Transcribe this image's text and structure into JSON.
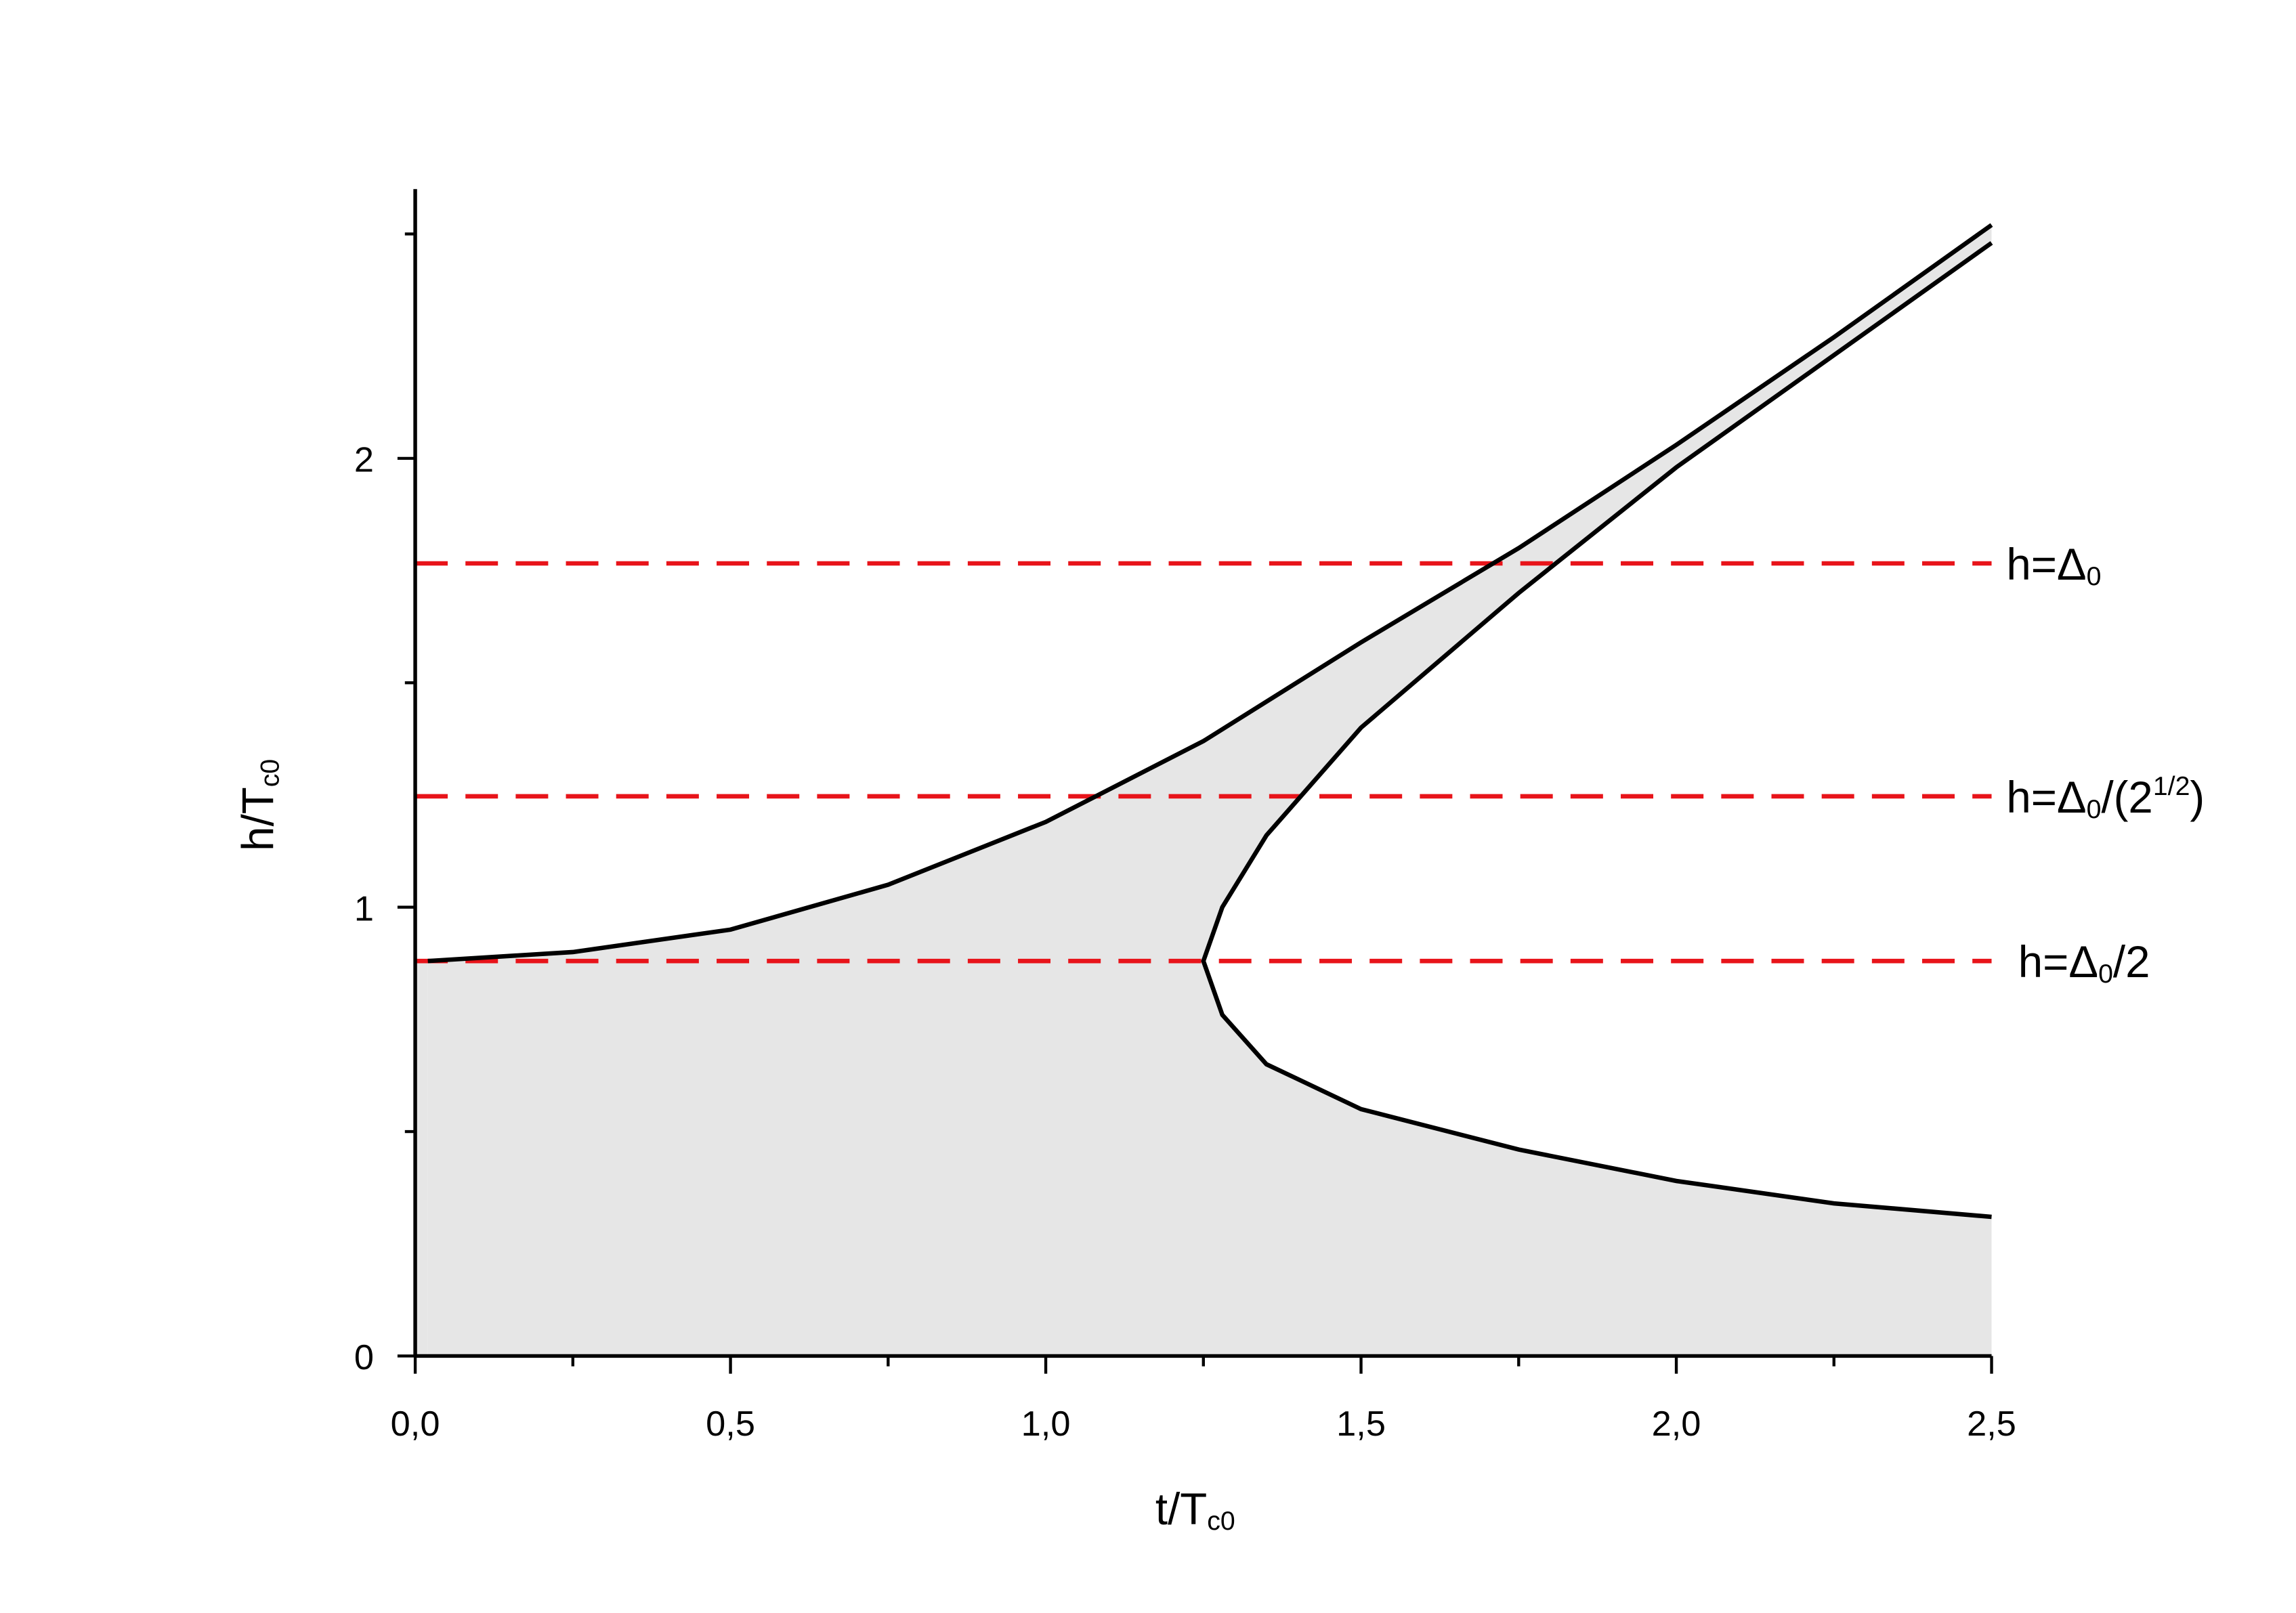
{
  "chart_data": {
    "type": "line",
    "xlabel_parts": [
      {
        "text": "t/T"
      },
      {
        "text": "c0",
        "sub": true
      }
    ],
    "ylabel_parts": [
      {
        "text": "h/T"
      },
      {
        "text": "c0",
        "sub": true
      }
    ],
    "xlim": [
      0,
      2.5
    ],
    "ylim": [
      0,
      2.6
    ],
    "xticks": [
      {
        "value": 0,
        "label": "0,0"
      },
      {
        "value": 0.5,
        "label": "0,5"
      },
      {
        "value": 1,
        "label": "1,0"
      },
      {
        "value": 1.5,
        "label": "1,5"
      },
      {
        "value": 2,
        "label": "2,0"
      },
      {
        "value": 2.5,
        "label": "2,5"
      }
    ],
    "xminorticks": [
      0.25,
      0.75,
      1.25,
      1.75,
      2.25
    ],
    "yticks": [
      0,
      1,
      2
    ],
    "yminorticks": [
      0.5,
      1.5,
      2.5
    ],
    "fill_color": "#e6e6e6",
    "series": [
      {
        "color": "#000000",
        "x": [
          0.02,
          0.25,
          0.5,
          0.75,
          1.0,
          1.25,
          1.5,
          1.75,
          2.0,
          2.25,
          2.5
        ],
        "values": [
          0.88,
          0.9,
          0.95,
          1.05,
          1.19,
          1.37,
          1.59,
          1.8,
          2.03,
          2.27,
          2.52
        ]
      },
      {
        "color": "#000000",
        "x": [
          2.5,
          2.25,
          2.0,
          1.75,
          1.5,
          1.35,
          1.28,
          1.25,
          1.28,
          1.35,
          1.5,
          1.75,
          2.0,
          2.25,
          2.5
        ],
        "values": [
          2.48,
          2.23,
          1.98,
          1.7,
          1.4,
          1.16,
          1.0,
          0.88,
          0.76,
          0.65,
          0.55,
          0.46,
          0.39,
          0.34,
          0.31
        ]
      }
    ],
    "hlines": [
      {
        "value": 1.766,
        "color": "#e8141a",
        "label_parts": [
          {
            "text": "h=Δ"
          },
          {
            "text": "0",
            "sub": true
          }
        ]
      },
      {
        "value": 1.247,
        "color": "#e8141a",
        "label_parts": [
          {
            "text": "h=Δ"
          },
          {
            "text": "0",
            "sub": true
          },
          {
            "text": "/(2"
          },
          {
            "text": "1/2",
            "sup": true
          },
          {
            "text": ")"
          }
        ]
      },
      {
        "value": 0.88,
        "color": "#e8141a",
        "label_parts": [
          {
            "text": "h=Δ"
          },
          {
            "text": "0",
            "sub": true
          },
          {
            "text": "/2"
          }
        ]
      }
    ]
  }
}
